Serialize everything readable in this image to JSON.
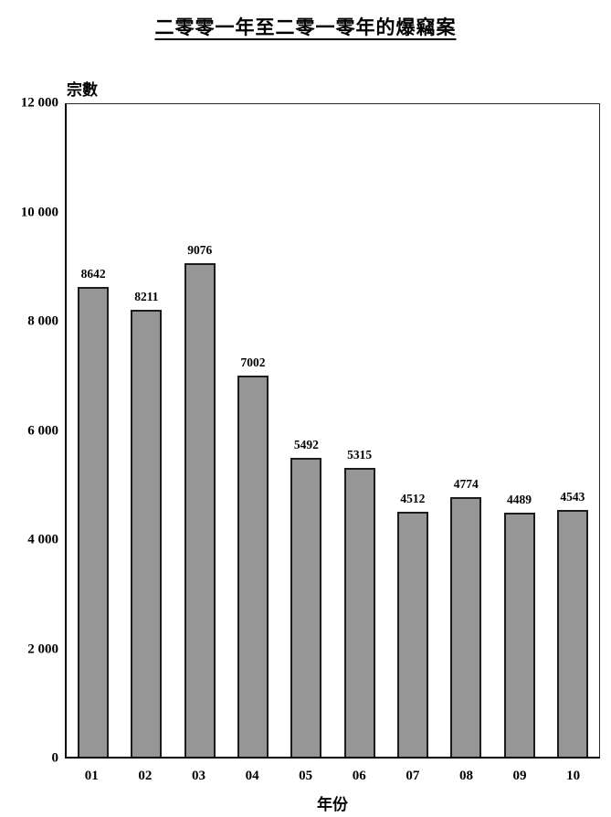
{
  "chart_data": {
    "type": "bar",
    "title": "二零零一年至二零一零年的爆竊案",
    "ylabel": "宗數",
    "xlabel": "年份",
    "categories": [
      "01",
      "02",
      "03",
      "04",
      "05",
      "06",
      "07",
      "08",
      "09",
      "10"
    ],
    "values": [
      8642,
      8211,
      9076,
      7002,
      5492,
      5315,
      4512,
      4774,
      4489,
      4543
    ],
    "ylim": [
      0,
      12000
    ],
    "yticks": [
      {
        "value": 0,
        "label": "0"
      },
      {
        "value": 2000,
        "label": "2 000"
      },
      {
        "value": 4000,
        "label": "4 000"
      },
      {
        "value": 6000,
        "label": "6 000"
      },
      {
        "value": 8000,
        "label": "8 000"
      },
      {
        "value": 10000,
        "label": "10 000"
      },
      {
        "value": 12000,
        "label": "12 000"
      }
    ],
    "grid": false,
    "legend": "none",
    "colors": {
      "bar_fill": "#969696",
      "bar_border": "#1c1c1c",
      "axis": "#000000",
      "text": "#000000",
      "background": "#ffffff"
    }
  }
}
